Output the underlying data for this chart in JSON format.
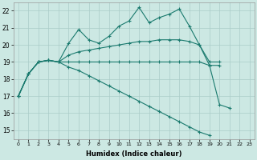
{
  "xlabel": "Humidex (Indice chaleur)",
  "bg_color": "#cce8e3",
  "grid_color": "#aaccc8",
  "line_color": "#1a7a6e",
  "x": [
    0,
    1,
    2,
    3,
    4,
    5,
    6,
    7,
    8,
    9,
    10,
    11,
    12,
    13,
    14,
    15,
    16,
    17,
    18,
    19,
    20,
    21,
    22,
    23
  ],
  "line_max": [
    17.0,
    18.3,
    19.0,
    19.1,
    19.0,
    20.1,
    20.9,
    20.3,
    20.1,
    20.5,
    21.1,
    21.4,
    22.2,
    21.3,
    21.6,
    21.8,
    22.1,
    21.1,
    20.0,
    18.8,
    16.5,
    16.3,
    null,
    null
  ],
  "line_upper": [
    17.0,
    18.3,
    19.0,
    19.1,
    19.0,
    19.4,
    19.6,
    19.7,
    19.8,
    19.9,
    20.0,
    20.1,
    20.2,
    20.2,
    20.3,
    20.3,
    20.3,
    20.2,
    20.0,
    19.0,
    19.0,
    null,
    null,
    null
  ],
  "line_lower": [
    17.0,
    18.3,
    19.0,
    19.1,
    19.0,
    19.0,
    19.0,
    19.0,
    19.0,
    19.0,
    19.0,
    19.0,
    19.0,
    19.0,
    19.0,
    19.0,
    19.0,
    19.0,
    19.0,
    18.8,
    18.8,
    null,
    null,
    null
  ],
  "line_min": [
    17.0,
    18.3,
    19.0,
    19.1,
    19.0,
    18.7,
    18.5,
    18.2,
    17.9,
    17.6,
    17.3,
    17.0,
    16.7,
    16.4,
    16.1,
    15.8,
    15.5,
    15.2,
    14.9,
    14.7,
    null,
    null,
    null,
    null
  ],
  "ylim": [
    14.5,
    22.5
  ],
  "yticks": [
    15,
    16,
    17,
    18,
    19,
    20,
    21,
    22
  ],
  "xlim": [
    -0.5,
    23.5
  ]
}
